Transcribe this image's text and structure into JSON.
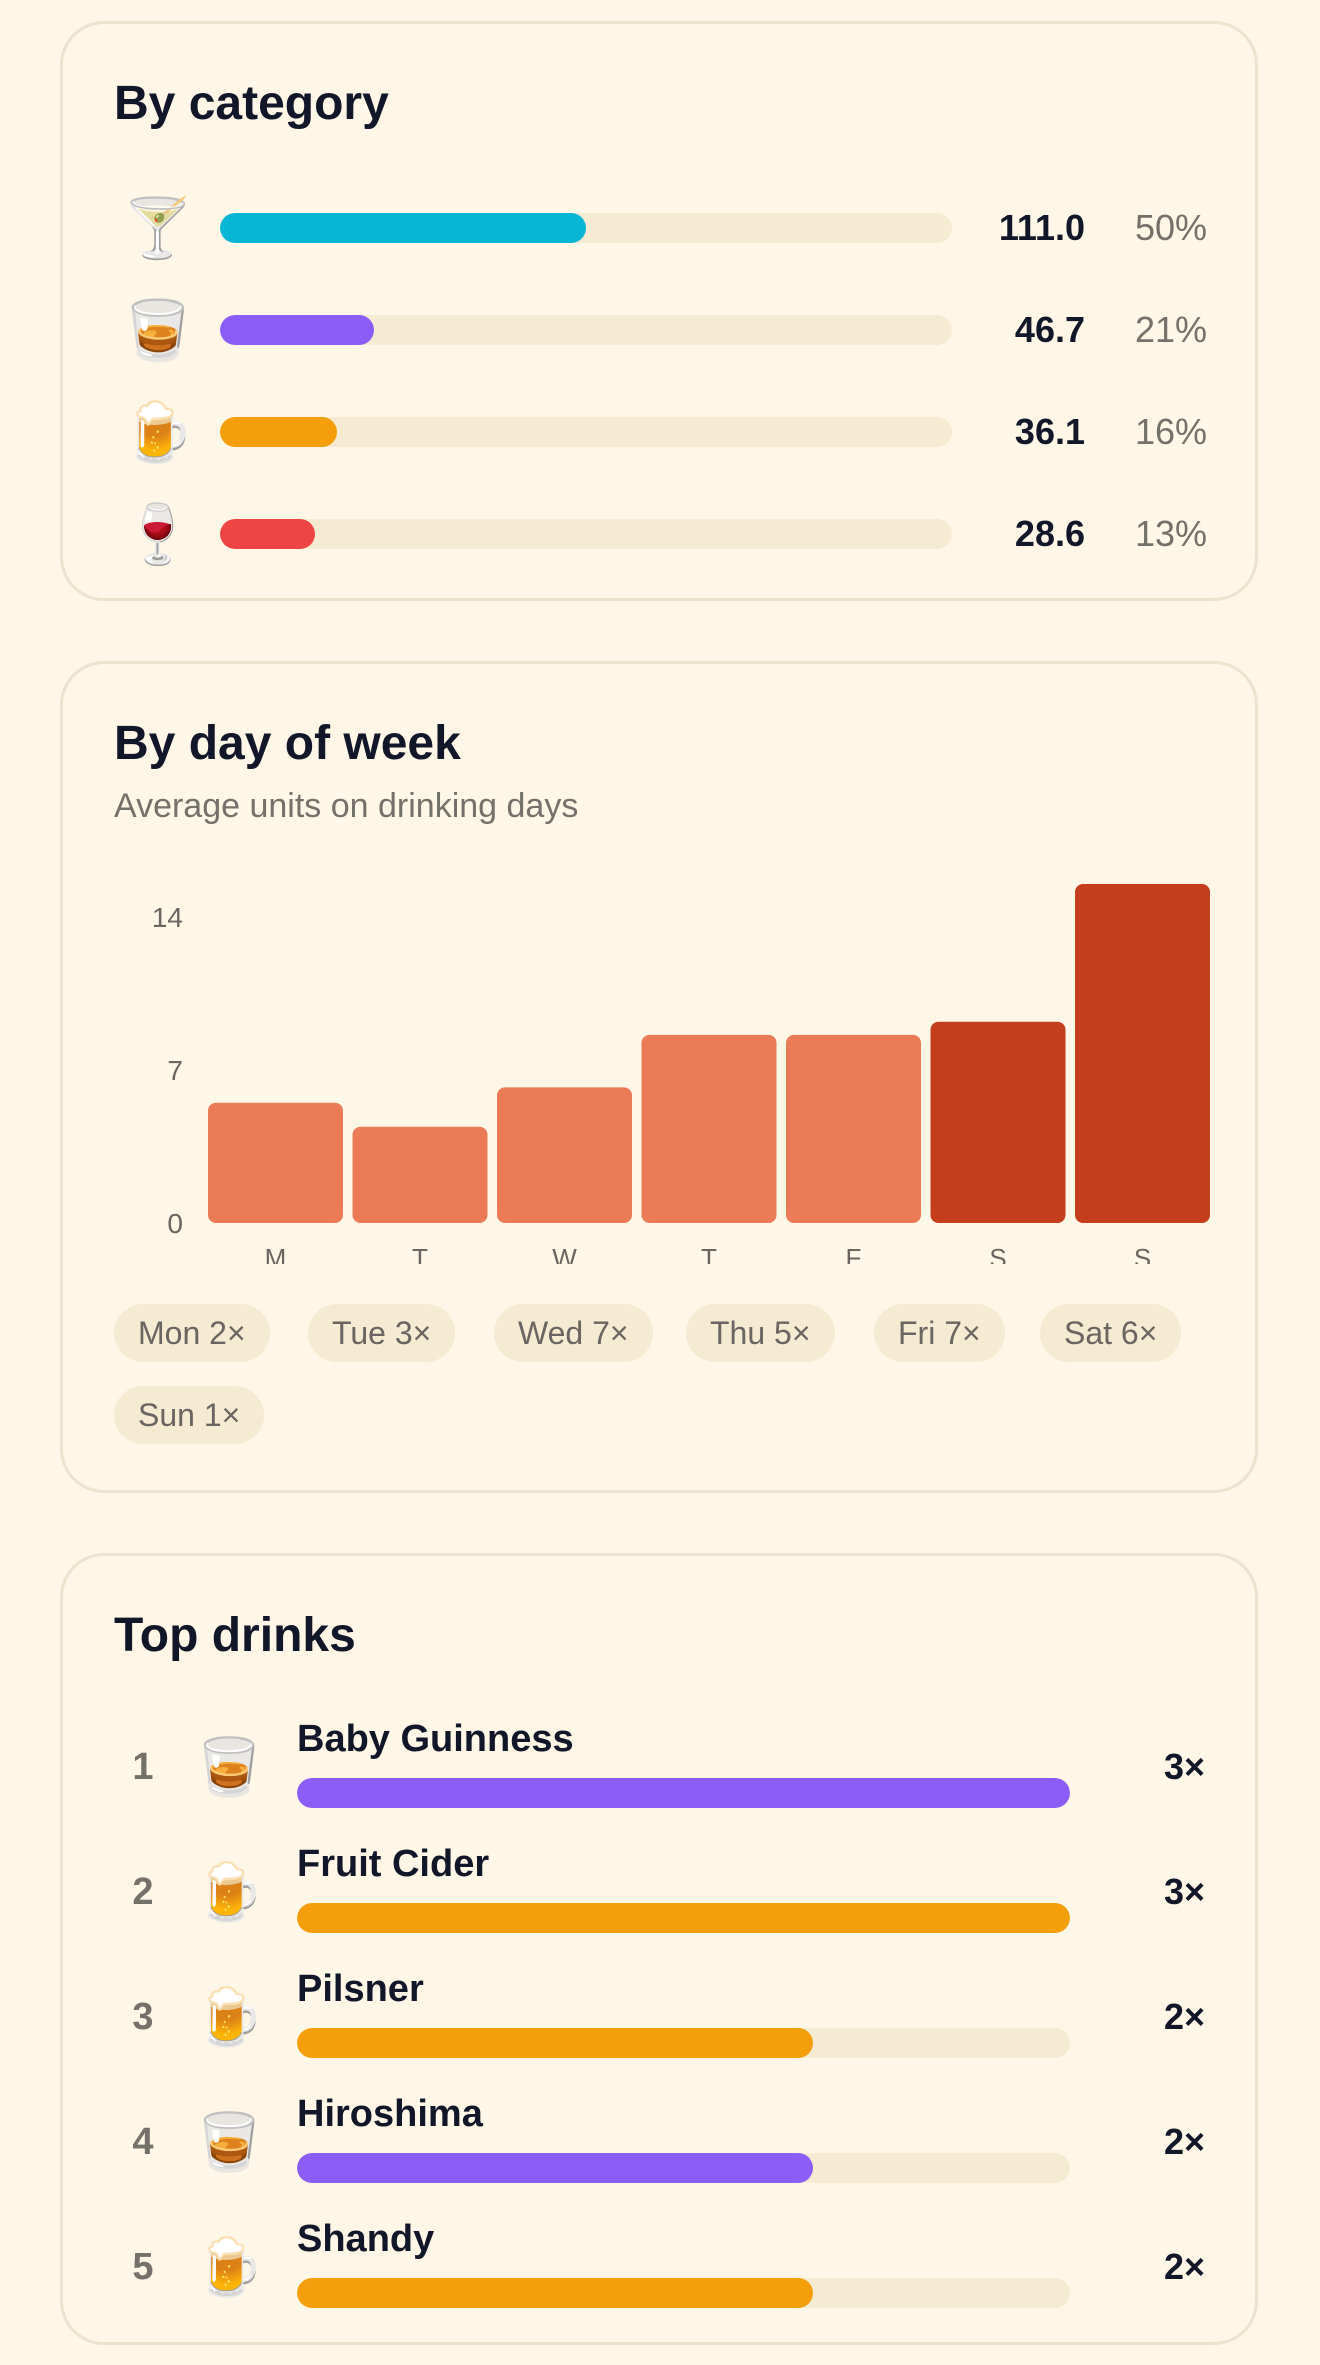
{
  "category": {
    "title": "By category",
    "rows": [
      {
        "icon": "cocktail-icon",
        "glyph": "🍸",
        "value": "111.0",
        "percent": "50%",
        "share": 0.5,
        "color": "#07b6d5"
      },
      {
        "icon": "whisky-tumbler-icon",
        "glyph": "🥃",
        "value": "46.7",
        "percent": "21%",
        "share": 0.21,
        "color": "#8b5cf6"
      },
      {
        "icon": "beer-mug-icon",
        "glyph": "🍺",
        "value": "36.1",
        "percent": "16%",
        "share": 0.16,
        "color": "#f59e0b"
      },
      {
        "icon": "wine-glass-icon",
        "glyph": "🍷",
        "value": "28.6",
        "percent": "13%",
        "share": 0.13,
        "color": "#ef4444"
      }
    ]
  },
  "day_of_week": {
    "title": "By day of week",
    "subtitle": "Average units on drinking days",
    "chips": [
      "Mon 2×",
      "Tue 3×",
      "Wed 7×",
      "Thu 5×",
      "Fri 7×",
      "Sat 6×",
      "Sun 1×"
    ],
    "colors": {
      "weekday": "#eb7b56",
      "weekend": "#c43d1d",
      "axis_text": "#6a6560"
    }
  },
  "chart_data": {
    "type": "bar",
    "categories": [
      "M",
      "T",
      "W",
      "T",
      "F",
      "S",
      "S"
    ],
    "values": [
      5.5,
      4.4,
      6.2,
      8.6,
      8.6,
      9.2,
      15.5
    ],
    "yticks": [
      0,
      7,
      14
    ],
    "ylim": [
      0,
      15.5
    ],
    "title": "By day of week",
    "subtitle": "Average units on drinking days",
    "xlabel": "",
    "ylabel": "",
    "grid": false,
    "legend": "none"
  },
  "top_drinks": {
    "title": "Top drinks",
    "items": [
      {
        "rank": "1",
        "name": "Baby Guinness",
        "count": "3×",
        "icon": "whisky-tumbler-icon",
        "glyph": "🥃",
        "share": 1.0,
        "color": "#8b5cf6"
      },
      {
        "rank": "2",
        "name": "Fruit Cider",
        "count": "3×",
        "icon": "beer-mug-icon",
        "glyph": "🍺",
        "share": 1.0,
        "color": "#f59e0b"
      },
      {
        "rank": "3",
        "name": "Pilsner",
        "count": "2×",
        "icon": "beer-mug-icon",
        "glyph": "🍺",
        "share": 0.667,
        "color": "#f59e0b"
      },
      {
        "rank": "4",
        "name": "Hiroshima",
        "count": "2×",
        "icon": "whisky-tumbler-icon",
        "glyph": "🥃",
        "share": 0.667,
        "color": "#8b5cf6"
      },
      {
        "rank": "5",
        "name": "Shandy",
        "count": "2×",
        "icon": "beer-mug-icon",
        "glyph": "🍺",
        "share": 0.667,
        "color": "#f59e0b"
      }
    ]
  }
}
